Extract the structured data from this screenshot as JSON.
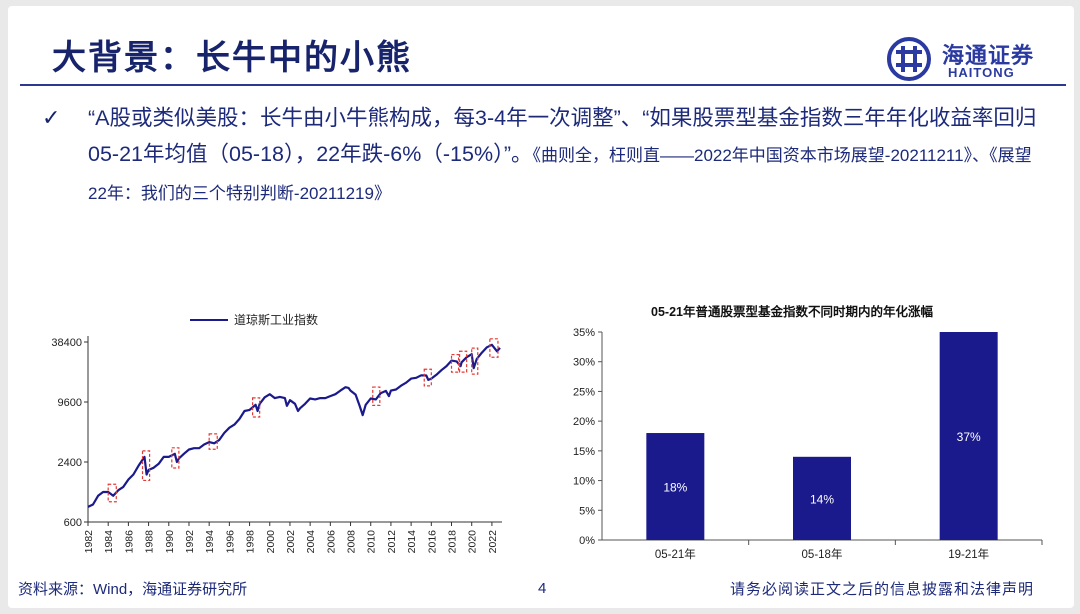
{
  "title": "大背景：长牛中的小熊",
  "logo": {
    "cn": "海通证券",
    "en": "HAITONG"
  },
  "bullet": {
    "check": "✓",
    "text": "“A股或类似美股：长牛由小牛熊构成，每3-4年一次调整”、“如果股票型基金指数三年年化收益率回归05-21年均值（05-18），22年跌-6%（-15%）”。",
    "refs": "《曲则全，枉则直——2022年中国资本市场展望-20211211》、《展望22年：我们的三个特别判断-20211219》"
  },
  "footer": {
    "source": "资料来源：Wind，海通证券研究所",
    "page": "4",
    "disclaimer": "请务必阅读正文之后的信息披露和法律声明"
  },
  "colors": {
    "navy": "#1a1a8c",
    "title": "#17246b",
    "highlight": "#e53935"
  },
  "chart_data": [
    {
      "type": "line",
      "legend": "道琼斯工业指数",
      "legend_position": "top-center",
      "yscale": "log",
      "ylim": [
        600,
        38400
      ],
      "yticks": [
        600,
        2400,
        9600,
        38400
      ],
      "xticks": [
        "1982",
        "1984",
        "1986",
        "1988",
        "1990",
        "1992",
        "1994",
        "1996",
        "1998",
        "2000",
        "2002",
        "2004",
        "2006",
        "2008",
        "2010",
        "2012",
        "2014",
        "2016",
        "2018",
        "2020",
        "2022"
      ],
      "x": [
        1982.0,
        1982.5,
        1983.0,
        1983.5,
        1984.0,
        1984.5,
        1985.0,
        1985.5,
        1986.0,
        1986.5,
        1987.0,
        1987.6,
        1987.8,
        1988.0,
        1988.5,
        1989.0,
        1989.5,
        1990.0,
        1990.6,
        1990.8,
        1991.0,
        1991.5,
        1992.0,
        1992.5,
        1993.0,
        1993.5,
        1994.0,
        1994.5,
        1995.0,
        1995.5,
        1996.0,
        1996.5,
        1997.0,
        1997.5,
        1998.0,
        1998.6,
        1998.8,
        1999.0,
        1999.5,
        2000.0,
        2000.5,
        2001.0,
        2001.5,
        2001.7,
        2002.0,
        2002.5,
        2002.8,
        2003.0,
        2003.5,
        2004.0,
        2004.5,
        2005.0,
        2005.5,
        2006.0,
        2006.5,
        2007.0,
        2007.5,
        2007.8,
        2008.0,
        2008.5,
        2008.9,
        2009.2,
        2009.5,
        2010.0,
        2010.5,
        2011.0,
        2011.5,
        2011.8,
        2012.0,
        2012.5,
        2013.0,
        2013.5,
        2014.0,
        2014.5,
        2015.0,
        2015.5,
        2015.7,
        2016.0,
        2016.5,
        2017.0,
        2017.5,
        2018.0,
        2018.5,
        2018.9,
        2019.0,
        2019.5,
        2020.0,
        2020.2,
        2020.5,
        2021.0,
        2021.5,
        2022.0,
        2022.5,
        2022.8
      ],
      "y": [
        850,
        900,
        1100,
        1200,
        1200,
        1100,
        1250,
        1350,
        1600,
        1800,
        2200,
        2700,
        1800,
        2000,
        2100,
        2300,
        2700,
        2700,
        2900,
        2400,
        2600,
        2900,
        3200,
        3300,
        3300,
        3600,
        3800,
        3700,
        4000,
        4700,
        5300,
        5700,
        6500,
        7800,
        8000,
        9000,
        7800,
        9200,
        10700,
        11500,
        10500,
        10800,
        10500,
        8800,
        10000,
        9200,
        7800,
        8300,
        9200,
        10400,
        10200,
        10500,
        10500,
        11000,
        11500,
        12500,
        13500,
        13300,
        12500,
        11400,
        8800,
        7100,
        9000,
        10400,
        10200,
        11800,
        12400,
        11000,
        12500,
        12800,
        14000,
        15000,
        16500,
        16800,
        17800,
        17700,
        16000,
        16500,
        18000,
        20000,
        22000,
        25000,
        24500,
        22000,
        24000,
        27000,
        29000,
        21000,
        26000,
        30000,
        34000,
        36000,
        31000,
        33500
      ],
      "highlight_boxes": [
        [
          1984.0,
          1984.8
        ],
        [
          1987.4,
          1988.1
        ],
        [
          1990.3,
          1991.0
        ],
        [
          1994.0,
          1994.8
        ],
        [
          1998.3,
          1999.0
        ],
        [
          2010.2,
          2010.9
        ],
        [
          2015.3,
          2016.0
        ],
        [
          2018.0,
          2018.7
        ],
        [
          2018.8,
          2019.5
        ],
        [
          2020.0,
          2020.6
        ],
        [
          2021.8,
          2022.6
        ]
      ]
    },
    {
      "type": "bar",
      "title": "05-21年普通股票型基金指数不同时期内的年化涨幅",
      "categories": [
        "05-21年",
        "05-18年",
        "19-21年"
      ],
      "values": [
        18,
        14,
        37
      ],
      "labels": [
        "18%",
        "14%",
        "37%"
      ],
      "ylim": [
        0,
        35
      ],
      "yticks": [
        "0%",
        "5%",
        "10%",
        "15%",
        "20%",
        "25%",
        "30%",
        "35%"
      ]
    }
  ]
}
